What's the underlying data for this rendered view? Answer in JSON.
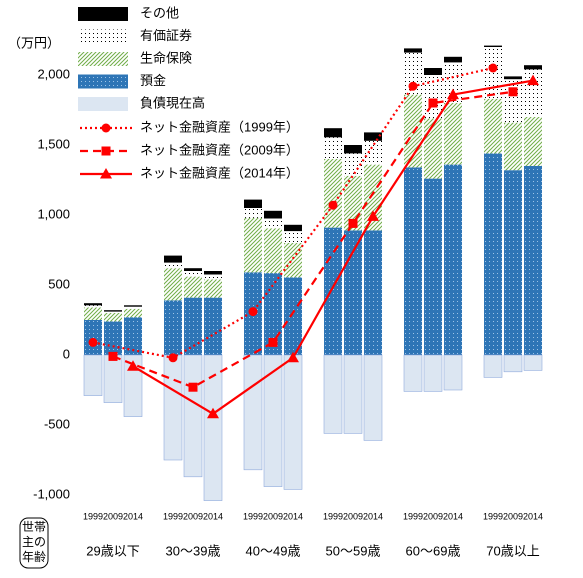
{
  "chart_data": {
    "type": "stacked-bar-line",
    "y_unit": "（万円）",
    "x_title": "世帯主の年齢",
    "groups": [
      "29歳以下",
      "30〜39歳",
      "40〜49歳",
      "50〜59歳",
      "60〜69歳",
      "70歳以上"
    ],
    "categories": [
      "1999",
      "2009",
      "2014"
    ],
    "ylim": [
      -1100,
      2500
    ],
    "yticks": [
      {
        "value": 2000,
        "label": "2,000"
      },
      {
        "value": 1500,
        "label": "1,500"
      },
      {
        "value": 1000,
        "label": "1,000"
      },
      500,
      0,
      -500,
      {
        "value": -1000,
        "label": "-1,000"
      }
    ],
    "grid": false,
    "series": [
      {
        "name": "預金",
        "color": "#2e75b6",
        "pattern": "dots",
        "values": [
          [
            250,
            240,
            270
          ],
          [
            390,
            410,
            410
          ],
          [
            590,
            585,
            555
          ],
          [
            910,
            890,
            890
          ],
          [
            1340,
            1260,
            1360
          ],
          [
            1440,
            1320,
            1350
          ]
        ]
      },
      {
        "name": "生命保険",
        "color": "#70ad47",
        "pattern": "hatch",
        "values": [
          [
            90,
            60,
            60
          ],
          [
            230,
            150,
            130
          ],
          [
            390,
            320,
            245
          ],
          [
            490,
            390,
            470
          ],
          [
            520,
            430,
            440
          ],
          [
            390,
            340,
            350
          ]
        ]
      },
      {
        "name": "有価証券",
        "color": "#000000",
        "pattern": "sparse-dots",
        "values": [
          [
            15,
            10,
            15
          ],
          [
            40,
            40,
            35
          ],
          [
            70,
            70,
            85
          ],
          [
            155,
            160,
            170
          ],
          [
            300,
            310,
            290
          ],
          [
            370,
            310,
            340
          ]
        ]
      },
      {
        "name": "その他",
        "color": "#000000",
        "pattern": "solid",
        "values": [
          [
            15,
            10,
            10
          ],
          [
            50,
            20,
            25
          ],
          [
            60,
            55,
            45
          ],
          [
            65,
            60,
            60
          ],
          [
            30,
            50,
            40
          ],
          [
            10,
            20,
            30
          ]
        ]
      },
      {
        "name": "負債現在高",
        "color": "#dce6f2",
        "pattern": "solid",
        "values": [
          [
            -290,
            -340,
            -440
          ],
          [
            -750,
            -870,
            -1040
          ],
          [
            -820,
            -940,
            -960
          ],
          [
            -560,
            -560,
            -610
          ],
          [
            -260,
            -260,
            -250
          ],
          [
            -160,
            -120,
            -110
          ]
        ]
      }
    ],
    "lines": [
      {
        "name": "ネット金融資産（1999年）",
        "color": "#ff0000",
        "dash": "dotted",
        "marker": "circle",
        "values": [
          90,
          -20,
          310,
          1070,
          1920,
          2050
        ]
      },
      {
        "name": "ネット金融資産（2009年）",
        "color": "#ff0000",
        "dash": "dashed",
        "marker": "square",
        "values": [
          -10,
          -230,
          90,
          940,
          1800,
          1880
        ]
      },
      {
        "name": "ネット金融資産（2014年）",
        "color": "#ff0000",
        "dash": "solid",
        "marker": "triangle",
        "values": [
          -80,
          -420,
          -20,
          990,
          1860,
          1960
        ]
      }
    ]
  }
}
